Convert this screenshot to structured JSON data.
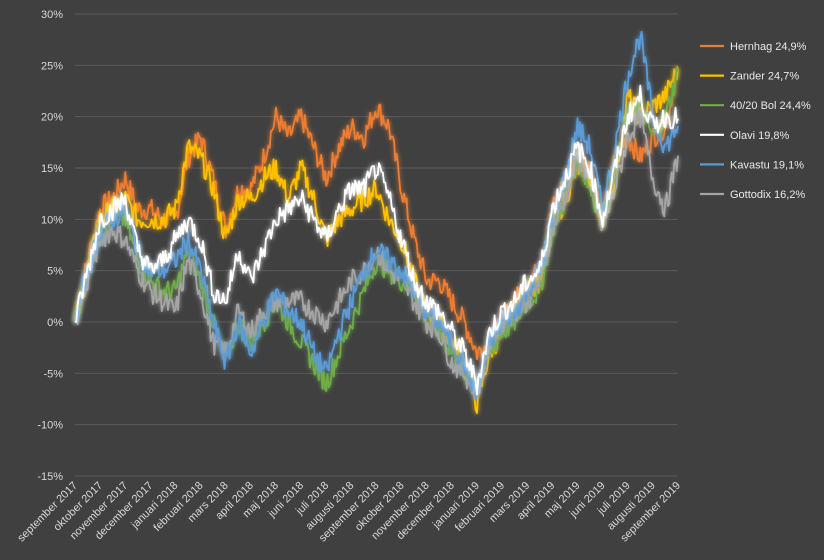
{
  "chart_data": {
    "type": "line",
    "xlim": [
      0,
      24
    ],
    "ylim": [
      -15,
      30
    ],
    "y_ticks": [
      {
        "value": 30,
        "label": "30%"
      },
      {
        "value": 25,
        "label": "25%"
      },
      {
        "value": 20,
        "label": "20%"
      },
      {
        "value": 15,
        "label": "15%"
      },
      {
        "value": 10,
        "label": "10%"
      },
      {
        "value": 5,
        "label": "5%"
      },
      {
        "value": 0,
        "label": "0%"
      },
      {
        "value": -5,
        "label": "-5%"
      },
      {
        "value": -10,
        "label": "-10%"
      },
      {
        "value": -15,
        "label": "-15%"
      }
    ],
    "x_ticks": [
      {
        "value": 0,
        "label": "september 2017"
      },
      {
        "value": 1,
        "label": "oktober 2017"
      },
      {
        "value": 2,
        "label": "november 2017"
      },
      {
        "value": 3,
        "label": "december 2017"
      },
      {
        "value": 4,
        "label": "januari 2018"
      },
      {
        "value": 5,
        "label": "februari 2018"
      },
      {
        "value": 6,
        "label": "mars 2018"
      },
      {
        "value": 7,
        "label": "april 2018"
      },
      {
        "value": 8,
        "label": "maj 2018"
      },
      {
        "value": 9,
        "label": "juni 2018"
      },
      {
        "value": 10,
        "label": "juli 2018"
      },
      {
        "value": 11,
        "label": "augusti 2018"
      },
      {
        "value": 12,
        "label": "september 2018"
      },
      {
        "value": 13,
        "label": "oktober 2018"
      },
      {
        "value": 14,
        "label": "november 2018"
      },
      {
        "value": 15,
        "label": "december 2018"
      },
      {
        "value": 16,
        "label": "januari 2019"
      },
      {
        "value": 17,
        "label": "februari 2019"
      },
      {
        "value": 18,
        "label": "mars 2019"
      },
      {
        "value": 19,
        "label": "april 2019"
      },
      {
        "value": 20,
        "label": "maj 2019"
      },
      {
        "value": 21,
        "label": "juni 2019"
      },
      {
        "value": 22,
        "label": "juli 2019"
      },
      {
        "value": 23,
        "label": "augusti 2019"
      },
      {
        "value": 24,
        "label": "september 2019"
      }
    ],
    "grid": true,
    "legend_position": "right",
    "series": [
      {
        "name": "Hernhag 24,9%",
        "color": "#ed7d31",
        "x": [
          0,
          0.5,
          1,
          1.5,
          2,
          2.5,
          3,
          3.5,
          4,
          4.5,
          5,
          5.5,
          6,
          6.5,
          7,
          7.5,
          8,
          8.5,
          9,
          9.5,
          10,
          10.5,
          11,
          11.5,
          12,
          12.5,
          13,
          13.5,
          14,
          14.5,
          15,
          15.5,
          16,
          16.5,
          17,
          17.5,
          18,
          18.5,
          19,
          19.5,
          20,
          20.5,
          21,
          21.5,
          22,
          22.5,
          23,
          23.5,
          24
        ],
        "y": [
          0,
          6,
          11,
          12,
          14,
          11,
          11,
          10,
          10,
          16,
          18,
          14,
          9,
          13,
          13,
          16,
          20,
          18,
          20,
          17,
          14,
          17,
          19,
          18,
          21,
          19,
          13,
          8,
          4,
          4,
          2,
          0,
          -3,
          -2,
          0,
          2,
          4,
          5,
          11,
          14,
          16,
          15,
          10,
          16,
          18,
          16,
          18,
          19,
          24.9
        ]
      },
      {
        "name": "Zander 24,7%",
        "color": "#ffc000",
        "x": [
          0,
          0.5,
          1,
          1.5,
          2,
          2.5,
          3,
          3.5,
          4,
          4.5,
          5,
          5.5,
          6,
          6.5,
          7,
          7.5,
          8,
          8.5,
          9,
          9.5,
          10,
          10.5,
          11,
          11.5,
          12,
          12.5,
          13,
          13.5,
          14,
          14.5,
          15,
          15.5,
          16,
          16.5,
          17,
          17.5,
          18,
          18.5,
          19,
          19.5,
          20,
          20.5,
          21,
          21.5,
          22,
          22.5,
          23,
          23.5,
          24
        ],
        "y": [
          0,
          5,
          10,
          11,
          12,
          10,
          10,
          10,
          11,
          17,
          16,
          13,
          8,
          12,
          12,
          14,
          15,
          12,
          15,
          12,
          8,
          10,
          11,
          12,
          13,
          10,
          8,
          4,
          1,
          0,
          -2,
          -4,
          -8,
          -3,
          -1,
          1,
          3,
          4,
          9,
          12,
          15,
          14,
          10,
          14,
          22,
          20,
          21,
          22,
          24.7
        ]
      },
      {
        "name": "40/20 Bol 24,4%",
        "color": "#70ad47",
        "x": [
          0,
          0.5,
          1,
          1.5,
          2,
          2.5,
          3,
          3.5,
          4,
          4.5,
          5,
          5.5,
          6,
          6.5,
          7,
          7.5,
          8,
          8.5,
          9,
          9.5,
          10,
          10.5,
          11,
          11.5,
          12,
          12.5,
          13,
          13.5,
          14,
          14.5,
          15,
          15.5,
          16,
          16.5,
          17,
          17.5,
          18,
          18.5,
          19,
          19.5,
          20,
          20.5,
          21,
          21.5,
          22,
          22.5,
          23,
          23.5,
          24
        ],
        "y": [
          0,
          5,
          9,
          10,
          10,
          6,
          4,
          3,
          3,
          7,
          4,
          0,
          -4,
          0,
          -2,
          0,
          2,
          0,
          -2,
          -4,
          -6,
          -3,
          0,
          3,
          6,
          5,
          4,
          3,
          0,
          -1,
          -3,
          -5,
          -6,
          -3,
          -1,
          0,
          2,
          3,
          9,
          12,
          16,
          13,
          10,
          15,
          20,
          21,
          18,
          20,
          24.4
        ]
      },
      {
        "name": "Olavi 19,8%",
        "color": "#ffffff",
        "x": [
          0,
          0.5,
          1,
          1.5,
          2,
          2.5,
          3,
          3.5,
          4,
          4.5,
          5,
          5.5,
          6,
          6.5,
          7,
          7.5,
          8,
          8.5,
          9,
          9.5,
          10,
          10.5,
          11,
          11.5,
          12,
          12.5,
          13,
          13.5,
          14,
          14.5,
          15,
          15.5,
          16,
          16.5,
          17,
          17.5,
          18,
          18.5,
          19,
          19.5,
          20,
          20.5,
          21,
          21.5,
          22,
          22.5,
          23,
          23.5,
          24
        ],
        "y": [
          0,
          5,
          10,
          11,
          12,
          7,
          5,
          6,
          8,
          10,
          8,
          3,
          2,
          7,
          4,
          7,
          10,
          11,
          12,
          10,
          8,
          11,
          13,
          13,
          15,
          12,
          8,
          4,
          2,
          1,
          -1,
          -3,
          -6,
          -1,
          1,
          2,
          4,
          5,
          11,
          14,
          17,
          15,
          10,
          15,
          20,
          22,
          19,
          20,
          19.8
        ]
      },
      {
        "name": "Kavastu 19,1%",
        "color": "#5b9bd5",
        "x": [
          0,
          0.5,
          1,
          1.5,
          2,
          2.5,
          3,
          3.5,
          4,
          4.5,
          5,
          5.5,
          6,
          6.5,
          7,
          7.5,
          8,
          8.5,
          9,
          9.5,
          10,
          10.5,
          11,
          11.5,
          12,
          12.5,
          13,
          13.5,
          14,
          14.5,
          15,
          15.5,
          16,
          16.5,
          17,
          17.5,
          18,
          18.5,
          19,
          19.5,
          20,
          20.5,
          21,
          21.5,
          22,
          22.5,
          23,
          23.5,
          24
        ],
        "y": [
          0,
          5,
          9,
          10,
          11,
          7,
          5,
          5,
          6,
          8,
          5,
          0,
          -4,
          0,
          -3,
          0,
          3,
          1,
          0,
          -3,
          -5,
          -1,
          2,
          5,
          7,
          6,
          5,
          3,
          1,
          0,
          -2,
          -4,
          -7,
          -2,
          0,
          1,
          3,
          5,
          10,
          14,
          19,
          17,
          11,
          17,
          24,
          28,
          20,
          17,
          19.1
        ]
      },
      {
        "name": "Gottodix 16,2%",
        "color": "#a5a5a5",
        "x": [
          0,
          0.5,
          1,
          1.5,
          2,
          2.5,
          3,
          3.5,
          4,
          4.5,
          5,
          5.5,
          6,
          6.5,
          7,
          7.5,
          8,
          8.5,
          9,
          9.5,
          10,
          10.5,
          11,
          11.5,
          12,
          12.5,
          13,
          13.5,
          14,
          14.5,
          15,
          15.5,
          16,
          16.5,
          17,
          17.5,
          18,
          18.5,
          19,
          19.5,
          20,
          20.5,
          21,
          21.5,
          22,
          22.5,
          23,
          23.5,
          24
        ],
        "y": [
          0,
          4,
          8,
          9,
          8,
          5,
          3,
          2,
          1,
          6,
          3,
          -2,
          -3,
          1,
          -1,
          1,
          2,
          2,
          2,
          1,
          0,
          2,
          4,
          5,
          7,
          5,
          4,
          2,
          0,
          -1,
          -4,
          -5,
          -7,
          -2,
          0,
          1,
          2,
          4,
          9,
          12,
          16,
          14,
          9,
          13,
          18,
          20,
          14,
          11,
          16.2
        ]
      }
    ]
  }
}
